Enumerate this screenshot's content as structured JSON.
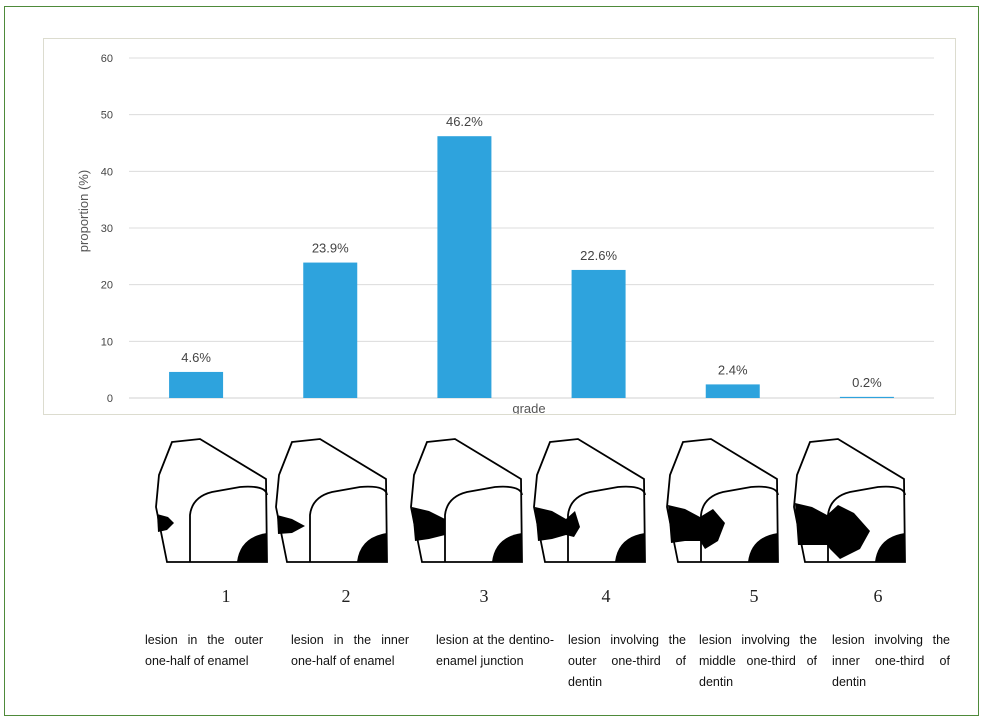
{
  "chart_data": {
    "type": "bar",
    "categories": [
      "1",
      "2",
      "3",
      "4",
      "5",
      "6"
    ],
    "values": [
      4.6,
      23.9,
      46.2,
      22.6,
      2.4,
      0.2
    ],
    "data_labels": [
      "4.6%",
      "23.9%",
      "46.2%",
      "22.6%",
      "2.4%",
      "0.2%"
    ],
    "xlabel": "grade",
    "ylabel": "proportion (%)",
    "ylim": [
      0,
      60
    ],
    "yticks": [
      "0",
      "10",
      "20",
      "30",
      "40",
      "50",
      "60"
    ],
    "grid": true,
    "bar_color": "#2ea3dd"
  },
  "grades": [
    {
      "number": "1",
      "description": "lesion in the outer one-half of enamel"
    },
    {
      "number": "2",
      "description": "lesion in the inner one-half of enamel"
    },
    {
      "number": "3",
      "description": "lesion at the dentino-enamel junction"
    },
    {
      "number": "4",
      "description": "lesion involving the outer one-third of dentin"
    },
    {
      "number": "5",
      "description": "lesion involving the middle one-third of dentin"
    },
    {
      "number": "6",
      "description": "lesion involving the inner one-third of dentin"
    }
  ]
}
